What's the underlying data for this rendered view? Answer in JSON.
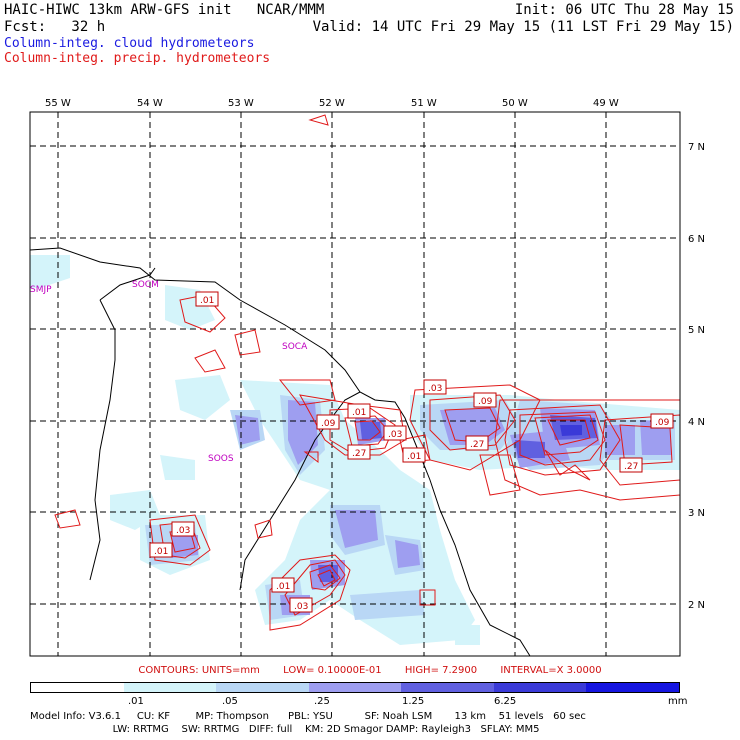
{
  "header": {
    "title": "HAIC-HIWC 13km ARW-GFS init   NCAR/MMM",
    "init": "Init: 06 UTC Thu 28 May 15",
    "fcst": "Fcst:   32 h",
    "valid": "Valid: 14 UTC Fri 29 May 15 (11 LST Fri 29 May 15)",
    "field1": "Column-integ. cloud hydrometeors",
    "field2": "Column-integ. precip. hydrometeors"
  },
  "map": {
    "lon_labels": [
      "55 W",
      "54 W",
      "53 W",
      "52 W",
      "51 W",
      "50 W",
      "49 W"
    ],
    "lat_labels": [
      "7 N",
      "6 N",
      "5 N",
      "4 N",
      "3 N",
      "2 N"
    ],
    "stations": [
      "SMJP",
      "SOCM",
      "SOCA",
      "SOOS"
    ],
    "contour_labels": [
      ".01",
      ".01",
      ".09",
      ".03",
      ".27",
      ".03",
      ".01",
      ".09",
      ".27",
      ".09",
      ".27",
      ".03",
      ".01",
      ".03",
      ".01",
      ".03",
      ".01"
    ],
    "colors": {
      "light": "#d4f4fa",
      "lightblue": "#b9d7f5",
      "mid": "#9e9ef0",
      "strong": "#6060e0",
      "deep": "#3a3ad8",
      "contour": "#e01a1a",
      "coast": "#000000",
      "grid": "#000000",
      "station": "#c000c0"
    }
  },
  "contours_line": {
    "text1": "CONTOURS:  UNITS=mm",
    "text2": "LOW= 0.10000E-01",
    "text3": "HIGH=  7.2900",
    "text4": "INTERVAL=X  3.0000"
  },
  "colorbar": {
    "ticks": [
      ".01",
      ".05",
      ".25",
      "1.25",
      "6.25"
    ],
    "unit": "mm",
    "colors": [
      "#ffffff",
      "#d4f4fa",
      "#b9d7f5",
      "#9e9ef0",
      "#6060e0",
      "#3a3ad8",
      "#1515e0"
    ]
  },
  "model_info": {
    "line1": "Model Info: V3.6.1     CU: KF        MP: Thompson      PBL: YSU          SF: Noah LSM       13 km    51 levels   60 sec",
    "line2": "                          LW: RRTMG    SW: RRTMG   DIFF: full    KM: 2D Smagor DAMP: Rayleigh3   SFLAY: MM5"
  }
}
